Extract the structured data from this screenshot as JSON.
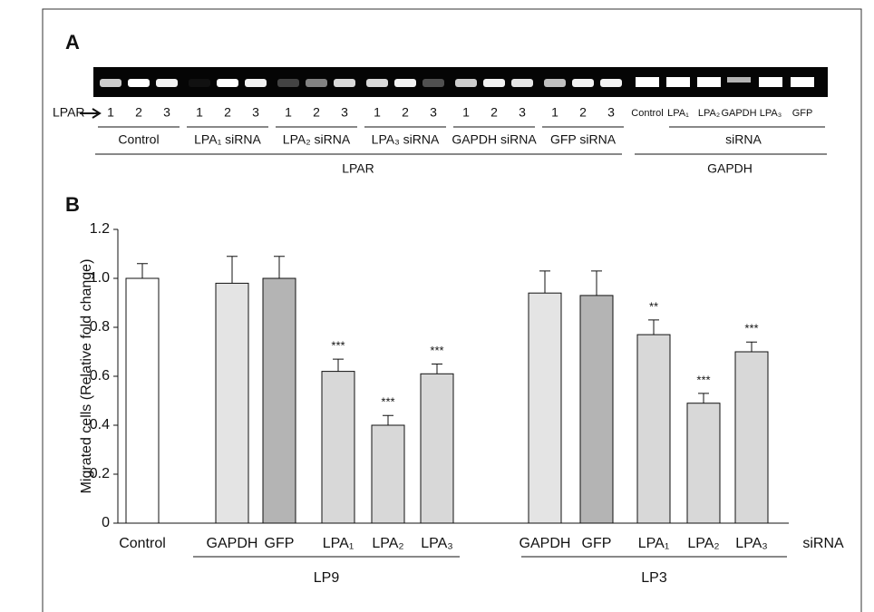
{
  "panel_a": {
    "label": "A",
    "row_label": "LPAR",
    "lpar_groups": [
      {
        "label": "Control",
        "lanes": [
          "1",
          "2",
          "3"
        ]
      },
      {
        "label": "LPA₁ siRNA",
        "lanes": [
          "1",
          "2",
          "3"
        ]
      },
      {
        "label": "LPA₂ siRNA",
        "lanes": [
          "1",
          "2",
          "3"
        ]
      },
      {
        "label": "LPA₃ siRNA",
        "lanes": [
          "1",
          "2",
          "3"
        ]
      },
      {
        "label": "GAPDH siRNA",
        "lanes": [
          "1",
          "2",
          "3"
        ]
      },
      {
        "label": "GFP siRNA",
        "lanes": [
          "1",
          "2",
          "3"
        ]
      }
    ],
    "gapdh_lanes": [
      "Control",
      "LPA₁",
      "LPA₂",
      "GAPDH",
      "LPA₃",
      "GFP"
    ],
    "gapdh_sirna_label": "siRNA",
    "lpar_bracket": "LPAR",
    "gapdh_bracket": "GAPDH"
  },
  "chart_data": {
    "type": "bar",
    "panel_label": "B",
    "y_label": "Migrated cells (Relative fold change)",
    "categories": [
      "Control",
      "GAPDH",
      "GFP",
      "LPA₁",
      "LPA₂",
      "LPA₃",
      "GAPDH",
      "GFP",
      "LPA₁",
      "LPA₂",
      "LPA₃"
    ],
    "values": [
      1.0,
      0.98,
      1.0,
      0.62,
      0.4,
      0.61,
      0.94,
      0.93,
      0.77,
      0.49,
      0.7
    ],
    "errors": [
      0.06,
      0.11,
      0.09,
      0.05,
      0.04,
      0.04,
      0.09,
      0.1,
      0.06,
      0.04,
      0.04
    ],
    "significance": [
      null,
      null,
      null,
      "***",
      "***",
      "***",
      null,
      null,
      "**",
      "***",
      "***"
    ],
    "colors": [
      "#ffffff",
      "#e4e4e4",
      "#b4b4b4",
      "#d8d8d8",
      "#d8d8d8",
      "#d8d8d8",
      "#e4e4e4",
      "#b4b4b4",
      "#d8d8d8",
      "#d8d8d8",
      "#d8d8d8"
    ],
    "groups": [
      "LP9",
      "LP3"
    ],
    "x_suffix_label": "siRNA",
    "ylim": [
      0,
      1.2
    ],
    "yticks": [
      0,
      0.2,
      0.4,
      0.6,
      0.8,
      {
        "value": 1,
        "label": "1.0"
      },
      1.2
    ]
  }
}
